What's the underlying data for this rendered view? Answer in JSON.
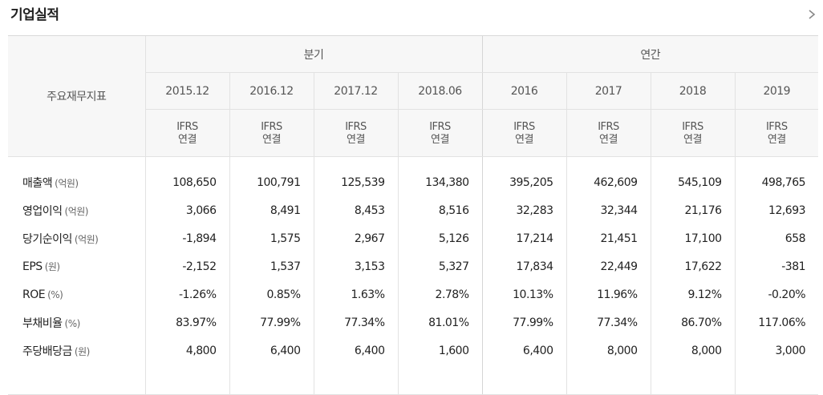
{
  "title": "기업실적",
  "more_icon": "chevron-right-icon",
  "row_header_label": "주요재무지표",
  "groups": {
    "quarterly": "분기",
    "annual": "연간"
  },
  "periods": [
    "2015.12",
    "2016.12",
    "2017.12",
    "2018.06",
    "2016",
    "2017",
    "2018",
    "2019"
  ],
  "basis": [
    [
      "IFRS",
      "연결"
    ],
    [
      "IFRS",
      "연결"
    ],
    [
      "IFRS",
      "연결"
    ],
    [
      "IFRS",
      "연결"
    ],
    [
      "IFRS",
      "연결"
    ],
    [
      "IFRS",
      "연결"
    ],
    [
      "IFRS",
      "연결"
    ],
    [
      "IFRS",
      "연결"
    ]
  ],
  "rows": [
    {
      "name": "매출액",
      "unit": "(억원)",
      "values": [
        "108,650",
        "100,791",
        "125,539",
        "134,380",
        "395,205",
        "462,609",
        "545,109",
        "498,765"
      ]
    },
    {
      "name": "영업이익",
      "unit": "(억원)",
      "values": [
        "3,066",
        "8,491",
        "8,453",
        "8,516",
        "32,283",
        "32,344",
        "21,176",
        "12,693"
      ]
    },
    {
      "name": "당기순이익",
      "unit": "(억원)",
      "values": [
        "-1,894",
        "1,575",
        "2,967",
        "5,126",
        "17,214",
        "21,451",
        "17,100",
        "658"
      ]
    },
    {
      "name": "EPS",
      "unit": "(원)",
      "values": [
        "-2,152",
        "1,537",
        "3,153",
        "5,327",
        "17,834",
        "22,449",
        "17,622",
        "-381"
      ]
    },
    {
      "name": "ROE",
      "unit": "(%)",
      "values": [
        "-1.26%",
        "0.85%",
        "1.63%",
        "2.78%",
        "10.13%",
        "11.96%",
        "9.12%",
        "-0.20%"
      ]
    },
    {
      "name": "부채비율",
      "unit": "(%)",
      "values": [
        "83.97%",
        "77.99%",
        "77.34%",
        "81.01%",
        "77.99%",
        "77.34%",
        "86.70%",
        "117.06%"
      ]
    },
    {
      "name": "주당배당금",
      "unit": "(원)",
      "values": [
        "4,800",
        "6,400",
        "6,400",
        "1,600",
        "6,400",
        "8,000",
        "8,000",
        "3,000"
      ]
    }
  ]
}
